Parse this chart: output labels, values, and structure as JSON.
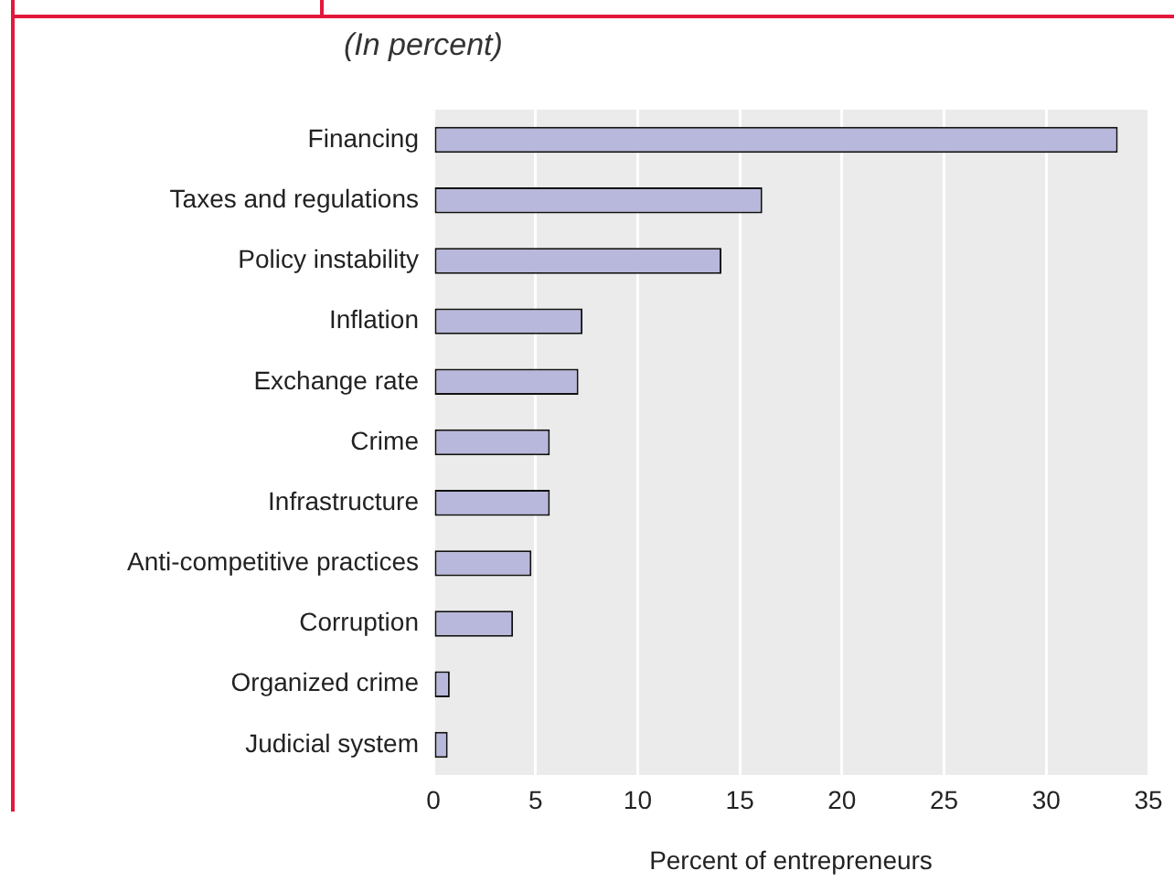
{
  "chart_data": {
    "type": "bar",
    "orientation": "horizontal",
    "subtitle": "(In percent)",
    "xlabel": "Percent of entrepreneurs",
    "categories": [
      "Financing",
      "Taxes and regulations",
      "Policy instability",
      "Inflation",
      "Exchange rate",
      "Crime",
      "Infrastructure",
      "Anti-competitive practices",
      "Corruption",
      "Organized crime",
      "Judicial system"
    ],
    "values": [
      33.5,
      16.1,
      14.1,
      7.3,
      7.1,
      5.7,
      5.7,
      4.8,
      3.9,
      0.8,
      0.7
    ],
    "color": "#b8b8dc",
    "xlim": [
      0,
      35
    ],
    "xticks": [
      0,
      5,
      10,
      15,
      20,
      25,
      30,
      35
    ],
    "grid": "x"
  }
}
